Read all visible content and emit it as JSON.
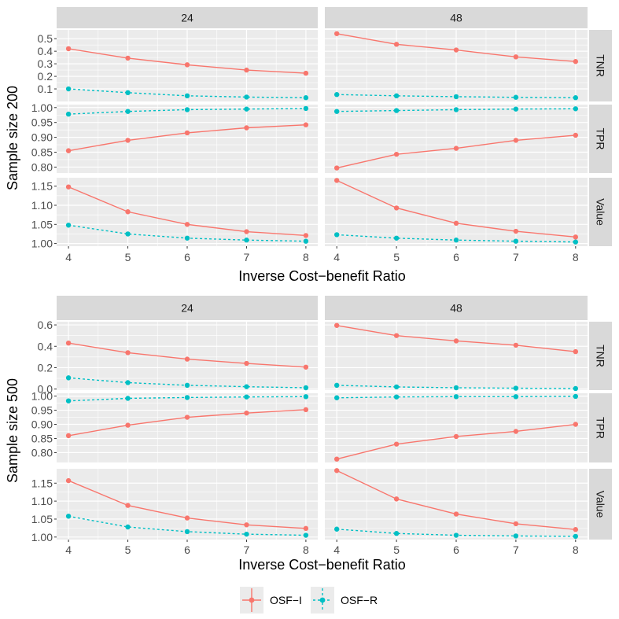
{
  "colors": {
    "osf_i": "#F8766D",
    "osf_r": "#00BFC4",
    "panel_bg": "#EBEBEB",
    "strip_bg": "#D9D9D9",
    "grid_major": "#FFFFFF"
  },
  "legend": {
    "items": [
      {
        "label": "OSF−I",
        "series": "osf_i"
      },
      {
        "label": "OSF−R",
        "series": "osf_r"
      }
    ]
  },
  "chart_data": [
    {
      "type": "line",
      "title": "Sample size 200",
      "ylabel": "Sample size 200",
      "xlabel": "Inverse Cost−benefit Ratio",
      "x": [
        4,
        5,
        6,
        7,
        8
      ],
      "x_tick_labels": [
        "4",
        "5",
        "6",
        "7",
        "8"
      ],
      "column_facets": [
        "24",
        "48"
      ],
      "row_facets": [
        {
          "label": "TNR",
          "ylim": [
            0.0,
            0.57
          ],
          "ticks": [
            0.1,
            0.2,
            0.3,
            0.4,
            0.5
          ],
          "tick_labels": [
            "0.1",
            "0.2",
            "0.3",
            "0.4",
            "0.5"
          ],
          "cells": {
            "24": {
              "OSF-I": [
                0.42,
                0.345,
                0.292,
                0.25,
                0.225
              ],
              "OSF-R": [
                0.1,
                0.07,
                0.045,
                0.035,
                0.03
              ]
            },
            "48": {
              "OSF-I": [
                0.54,
                0.455,
                0.41,
                0.355,
                0.318
              ],
              "OSF-R": [
                0.055,
                0.045,
                0.038,
                0.033,
                0.03
              ]
            }
          }
        },
        {
          "label": "TPR",
          "ylim": [
            0.78,
            1.01
          ],
          "ticks": [
            0.8,
            0.85,
            0.9,
            0.95,
            1.0
          ],
          "tick_labels": [
            "0.80",
            "0.85",
            "0.90",
            "0.95",
            "1.00"
          ],
          "cells": {
            "24": {
              "OSF-I": [
                0.855,
                0.89,
                0.915,
                0.932,
                0.942
              ],
              "OSF-R": [
                0.978,
                0.987,
                0.993,
                0.995,
                0.997
              ]
            },
            "48": {
              "OSF-I": [
                0.797,
                0.843,
                0.863,
                0.89,
                0.907
              ],
              "OSF-R": [
                0.987,
                0.99,
                0.993,
                0.995,
                0.996
              ]
            }
          }
        },
        {
          "label": "Value",
          "ylim": [
            0.993,
            1.172
          ],
          "ticks": [
            1.0,
            1.05,
            1.1,
            1.15
          ],
          "tick_labels": [
            "1.00",
            "1.05",
            "1.10",
            "1.15"
          ],
          "cells": {
            "24": {
              "OSF-I": [
                1.148,
                1.083,
                1.05,
                1.031,
                1.021
              ],
              "OSF-R": [
                1.048,
                1.025,
                1.014,
                1.009,
                1.006
              ]
            },
            "48": {
              "OSF-I": [
                1.165,
                1.093,
                1.053,
                1.032,
                1.017
              ],
              "OSF-R": [
                1.023,
                1.014,
                1.009,
                1.006,
                1.004
              ]
            }
          }
        }
      ]
    },
    {
      "type": "line",
      "title": "Sample size 500",
      "ylabel": "Sample size 500",
      "xlabel": "Inverse Cost−benefit Ratio",
      "x": [
        4,
        5,
        6,
        7,
        8
      ],
      "x_tick_labels": [
        "4",
        "5",
        "6",
        "7",
        "8"
      ],
      "column_facets": [
        "24",
        "48"
      ],
      "row_facets": [
        {
          "label": "TNR",
          "ylim": [
            -0.01,
            0.63
          ],
          "ticks": [
            0.0,
            0.2,
            0.4,
            0.6
          ],
          "tick_labels": [
            "0.0",
            "0.2",
            "0.4",
            "0.6"
          ],
          "cells": {
            "24": {
              "OSF-I": [
                0.43,
                0.34,
                0.28,
                0.24,
                0.205
              ],
              "OSF-R": [
                0.105,
                0.06,
                0.035,
                0.022,
                0.012
              ]
            },
            "48": {
              "OSF-I": [
                0.595,
                0.5,
                0.45,
                0.41,
                0.35
              ],
              "OSF-R": [
                0.035,
                0.02,
                0.012,
                0.008,
                0.005
              ]
            }
          }
        },
        {
          "label": "TPR",
          "ylim": [
            0.765,
            1.01
          ],
          "ticks": [
            0.8,
            0.85,
            0.9,
            0.95,
            1.0
          ],
          "tick_labels": [
            "0.80",
            "0.85",
            "0.90",
            "0.95",
            "1.00"
          ],
          "cells": {
            "24": {
              "OSF-I": [
                0.86,
                0.897,
                0.925,
                0.94,
                0.952
              ],
              "OSF-R": [
                0.983,
                0.992,
                0.995,
                0.997,
                0.998
              ]
            },
            "48": {
              "OSF-I": [
                0.777,
                0.83,
                0.857,
                0.875,
                0.9
              ],
              "OSF-R": [
                0.994,
                0.997,
                0.998,
                0.998,
                0.999
              ]
            }
          }
        },
        {
          "label": "Value",
          "ylim": [
            0.993,
            1.19
          ],
          "ticks": [
            1.0,
            1.05,
            1.1,
            1.15
          ],
          "tick_labels": [
            "1.00",
            "1.05",
            "1.10",
            "1.15"
          ],
          "cells": {
            "24": {
              "OSF-I": [
                1.157,
                1.088,
                1.053,
                1.034,
                1.024
              ],
              "OSF-R": [
                1.058,
                1.028,
                1.015,
                1.008,
                1.005
              ]
            },
            "48": {
              "OSF-I": [
                1.185,
                1.106,
                1.064,
                1.037,
                1.021
              ],
              "OSF-R": [
                1.022,
                1.01,
                1.005,
                1.003,
                1.002
              ]
            }
          }
        }
      ]
    }
  ]
}
